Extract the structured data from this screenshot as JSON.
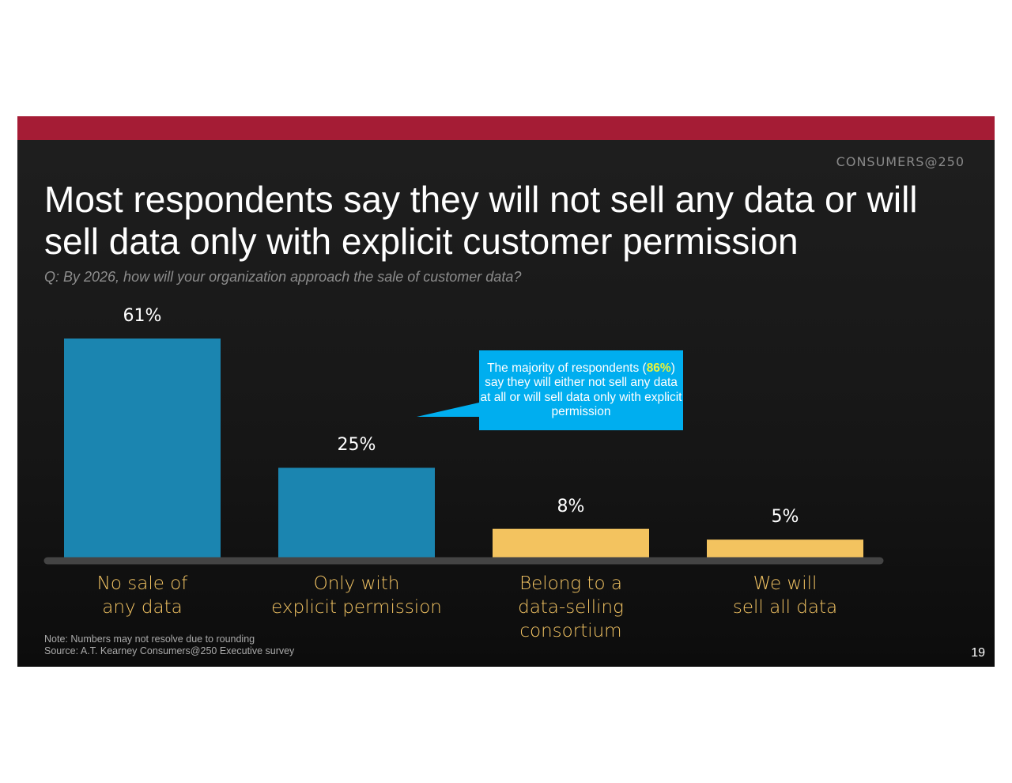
{
  "brand": "CONSUMERS@250",
  "title": "Most respondents say they will not sell any data or will sell data only with explicit customer permission",
  "subtitle": "Q: By 2026, how will your organization approach the sale of customer data?",
  "note": "Note: Numbers may not resolve due to rounding",
  "source": "Source: A.T. Kearney Consumers@250 Executive survey",
  "page_number": "19",
  "chart_data": {
    "type": "bar",
    "categories": [
      "No sale of\nany data",
      "Only with\nexplicit permission",
      "Belong to a\ndata-selling consortium",
      "We will\nsell all data"
    ],
    "values": [
      61,
      25,
      8,
      5
    ],
    "value_labels": [
      "61%",
      "25%",
      "8%",
      "5%"
    ],
    "colors": [
      "#1b85b0",
      "#1b85b0",
      "#f3c35f",
      "#f3c35f"
    ],
    "annotation": [
      "The majority of respondents (",
      "86%",
      ") say they will either not sell any data at all or will sell data only with explicit permission"
    ]
  }
}
